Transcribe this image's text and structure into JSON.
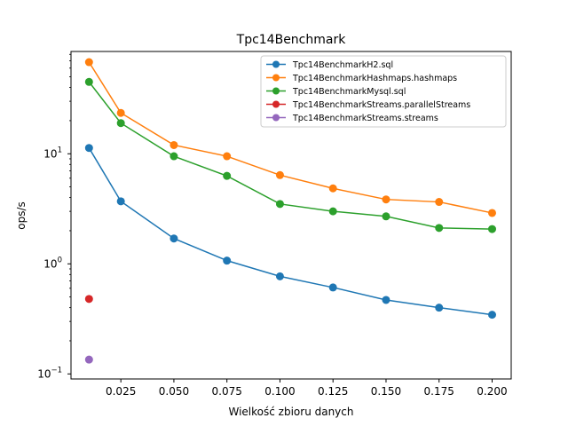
{
  "chart_data": {
    "type": "line",
    "title": "Tpc14Benchmark",
    "xlabel": "Wielkość zbioru danych",
    "ylabel": "ops/s",
    "yscale": "log",
    "xlim": [
      0.0015,
      0.209
    ],
    "ylim": [
      0.09,
      85
    ],
    "grid": false,
    "legend_position": "top-right",
    "x_ticks": [
      0.025,
      0.05,
      0.075,
      0.1,
      0.125,
      0.15,
      0.175,
      0.2
    ],
    "x_tick_labels": [
      "0.025",
      "0.050",
      "0.075",
      "0.100",
      "0.125",
      "0.150",
      "0.175",
      "0.200"
    ],
    "y_ticks": [
      {
        "value": 0.1,
        "base": "10",
        "exp": "−1"
      },
      {
        "value": 1,
        "base": "10",
        "exp": "0"
      },
      {
        "value": 10,
        "base": "10",
        "exp": "1"
      }
    ],
    "series": [
      {
        "name": "Tpc14BenchmarkH2.sql",
        "color": "#1f77b4",
        "x": [
          0.01,
          0.025,
          0.05,
          0.075,
          0.1,
          0.125,
          0.15,
          0.175,
          0.2
        ],
        "y": [
          11.3,
          3.7,
          1.7,
          1.07,
          0.77,
          0.61,
          0.47,
          0.4,
          0.345
        ]
      },
      {
        "name": "Tpc14BenchmarkHashmaps.hashmaps",
        "color": "#ff7f0e",
        "x": [
          0.01,
          0.025,
          0.05,
          0.075,
          0.1,
          0.125,
          0.15,
          0.175,
          0.2
        ],
        "y": [
          68,
          23.5,
          12.0,
          9.5,
          6.4,
          4.85,
          3.85,
          3.65,
          2.9
        ]
      },
      {
        "name": "Tpc14BenchmarkMysql.sql",
        "color": "#2ca02c",
        "x": [
          0.01,
          0.025,
          0.05,
          0.075,
          0.1,
          0.125,
          0.15,
          0.175,
          0.2
        ],
        "y": [
          45,
          19.0,
          9.5,
          6.3,
          3.5,
          3.0,
          2.7,
          2.12,
          2.07
        ]
      },
      {
        "name": "Tpc14BenchmarkStreams.parallelStreams",
        "color": "#d62728",
        "x": [
          0.01
        ],
        "y": [
          0.48
        ]
      },
      {
        "name": "Tpc14BenchmarkStreams.streams",
        "color": "#9467bd",
        "x": [
          0.01
        ],
        "y": [
          0.135
        ]
      }
    ]
  }
}
